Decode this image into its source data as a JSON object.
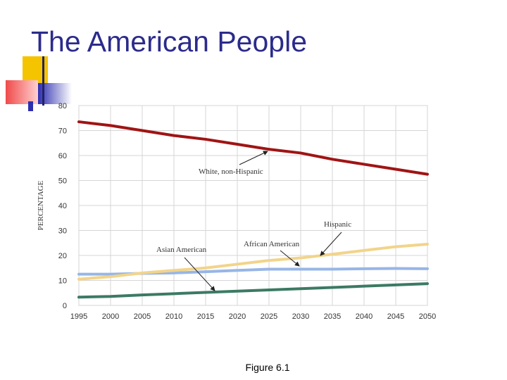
{
  "slide": {
    "title": "The American People",
    "caption": "Figure 6.1"
  },
  "colors": {
    "title": "#2b2b8c",
    "deco_yellow": "#f5c400",
    "deco_red": "#f04a4a",
    "deco_blue": "#2e2eb0"
  },
  "chart_data": {
    "type": "line",
    "title": "",
    "xlabel": "",
    "ylabel": "PERCENTAGE",
    "xlim": [
      1995,
      2050
    ],
    "ylim": [
      0,
      80
    ],
    "grid": true,
    "x": [
      1995,
      2000,
      2005,
      2010,
      2015,
      2020,
      2025,
      2030,
      2035,
      2040,
      2045,
      2050
    ],
    "x_tick_labels": [
      "1995",
      "2000",
      "2005",
      "2010",
      "2015",
      "2020",
      "2025",
      "2030",
      "2035",
      "2040",
      "2045",
      "2050"
    ],
    "y_ticks": [
      0,
      10,
      20,
      30,
      40,
      50,
      60,
      70,
      80
    ],
    "series": [
      {
        "name": "White, non-Hispanic",
        "color": "#a01414",
        "values": [
          73.5,
          72,
          70,
          68,
          66.5,
          64.5,
          62.5,
          61,
          58.5,
          56.5,
          54.5,
          52.5
        ]
      },
      {
        "name": "Hispanic",
        "color": "#f2d48a",
        "values": [
          10.5,
          11.5,
          13,
          14,
          15,
          16.5,
          18,
          19,
          20.5,
          22,
          23.5,
          24.5
        ]
      },
      {
        "name": "African American",
        "color": "#97b6e6",
        "values": [
          12.5,
          12.5,
          12.8,
          13,
          13.5,
          14,
          14.5,
          14.5,
          14.5,
          14.7,
          14.8,
          14.7
        ]
      },
      {
        "name": "Asian American",
        "color": "#3c7a64",
        "values": [
          3.3,
          3.6,
          4.2,
          4.7,
          5.2,
          5.7,
          6.2,
          6.7,
          7.2,
          7.7,
          8.2,
          8.7
        ]
      }
    ],
    "annotations": [
      {
        "text": "White, non-Hispanic",
        "series": "White, non-Hispanic"
      },
      {
        "text": "Hispanic",
        "series": "Hispanic"
      },
      {
        "text": "African American",
        "series": "African American"
      },
      {
        "text": "Asian American",
        "series": "Asian American"
      }
    ]
  }
}
